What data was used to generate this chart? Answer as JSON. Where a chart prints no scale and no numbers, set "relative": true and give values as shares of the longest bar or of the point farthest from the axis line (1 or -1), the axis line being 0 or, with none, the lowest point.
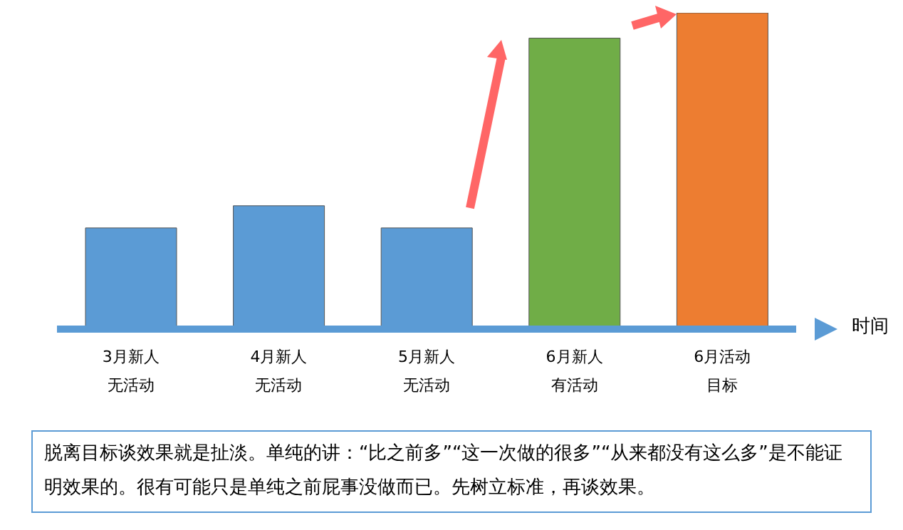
{
  "chart_data": {
    "type": "bar",
    "relative": true,
    "xlabel": "时间",
    "categories": [
      "3月新人无活动",
      "4月新人无活动",
      "5月新人无活动",
      "6月新人有活动",
      "6月活动目标"
    ],
    "values": [
      0.32,
      0.39,
      0.32,
      0.92,
      1
    ],
    "colors": [
      "#5b9bd5",
      "#5b9bd5",
      "#5b9bd5",
      "#70ad47",
      "#ed7d31"
    ],
    "annotations": [
      "脱离目标谈效果就是扯淡。单纯的讲：“比之前多”“这一次做的很多”“从来都没有这么多”是不能证明效果的。很有可能只是单纯之前屁事没做而已。先树立标准，再谈效果。"
    ]
  }
}
